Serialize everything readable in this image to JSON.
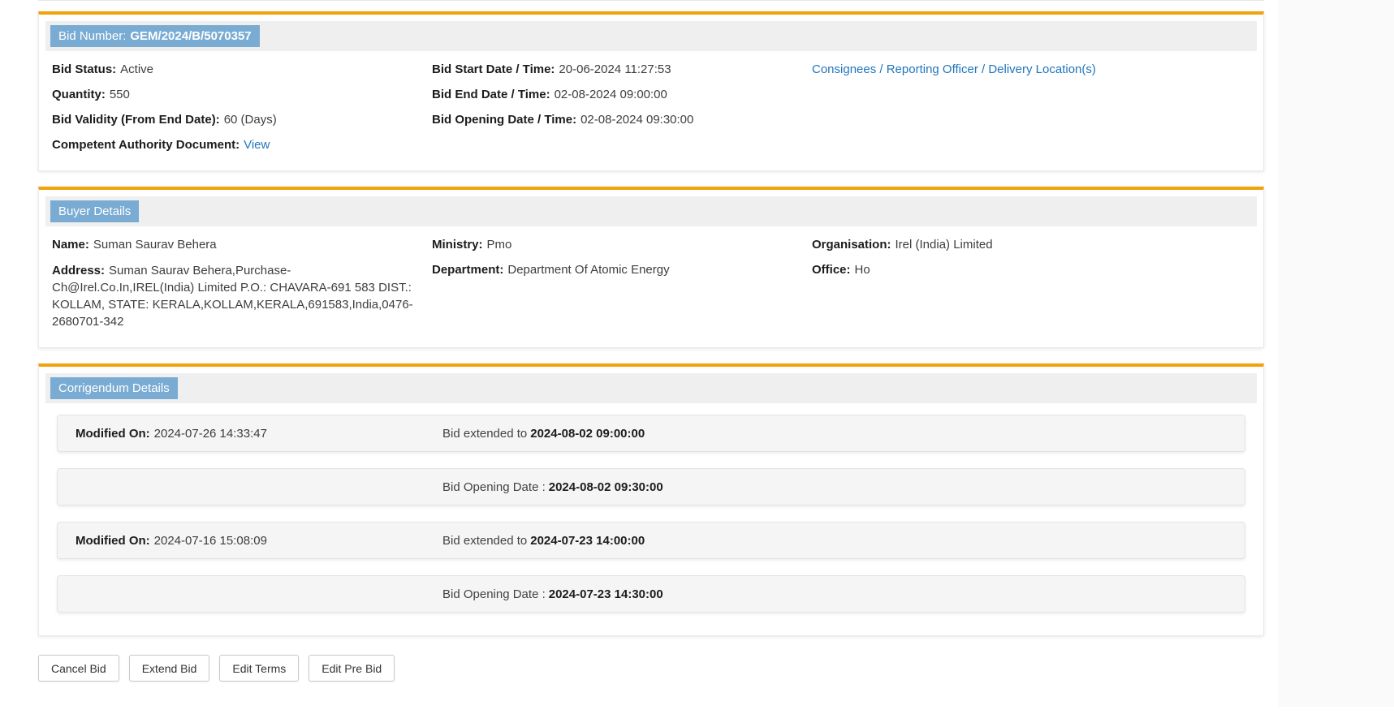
{
  "colors": {
    "accent_orange": "#F0A30C",
    "chip_blue": "#79ABD3",
    "link_blue": "#2176BD",
    "section_header_gray": "#EFEFEF",
    "corrigendum_row_gray": "#F5F5F5"
  },
  "bid": {
    "number_label": "Bid Number:",
    "number": "GEM/2024/B/5070357",
    "status_label": "Bid Status:",
    "status": "Active",
    "quantity_label": "Quantity:",
    "quantity": "550",
    "validity_label": "Bid Validity (From End Date):",
    "validity": "60 (Days)",
    "authority_doc_label": "Competent Authority Document:",
    "authority_doc_link": "View",
    "start_label": "Bid Start Date / Time:",
    "start": "20-06-2024 11:27:53",
    "end_label": "Bid End Date / Time:",
    "end": "02-08-2024 09:00:00",
    "opening_label": "Bid Opening Date / Time:",
    "opening": "02-08-2024 09:30:00",
    "consignees_link": "Consignees / Reporting Officer / Delivery Location(s)"
  },
  "buyer": {
    "section_title": "Buyer Details",
    "name_label": "Name:",
    "name": "Suman Saurav Behera",
    "address_label": "Address:",
    "address": "Suman Saurav Behera,Purchase-Ch@Irel.Co.In,IREL(India) Limited P.O.: CHAVARA-691 583 DIST.: KOLLAM, STATE: KERALA,KOLLAM,KERALA,691583,India,0476-2680701-342",
    "ministry_label": "Ministry:",
    "ministry": "Pmo",
    "department_label": "Department:",
    "department": "Department Of Atomic Energy",
    "organisation_label": "Organisation:",
    "organisation": "Irel (India) Limited",
    "office_label": "Office:",
    "office": "Ho"
  },
  "corrigendum": {
    "section_title": "Corrigendum Details",
    "rows": [
      {
        "modified_label": "Modified On:",
        "modified": "2024-07-26 14:33:47",
        "change_text": "Bid extended to",
        "change_value": "2024-08-02 09:00:00"
      },
      {
        "modified_label": "",
        "modified": "",
        "change_text": "Bid Opening Date :",
        "change_value": "2024-08-02 09:30:00"
      },
      {
        "modified_label": "Modified On:",
        "modified": "2024-07-16 15:08:09",
        "change_text": "Bid extended to",
        "change_value": "2024-07-23 14:00:00"
      },
      {
        "modified_label": "",
        "modified": "",
        "change_text": "Bid Opening Date :",
        "change_value": "2024-07-23 14:30:00"
      }
    ]
  },
  "actions": {
    "cancel": "Cancel Bid",
    "extend": "Extend Bid",
    "edit_terms": "Edit Terms",
    "edit_pre_bid": "Edit Pre Bid"
  }
}
